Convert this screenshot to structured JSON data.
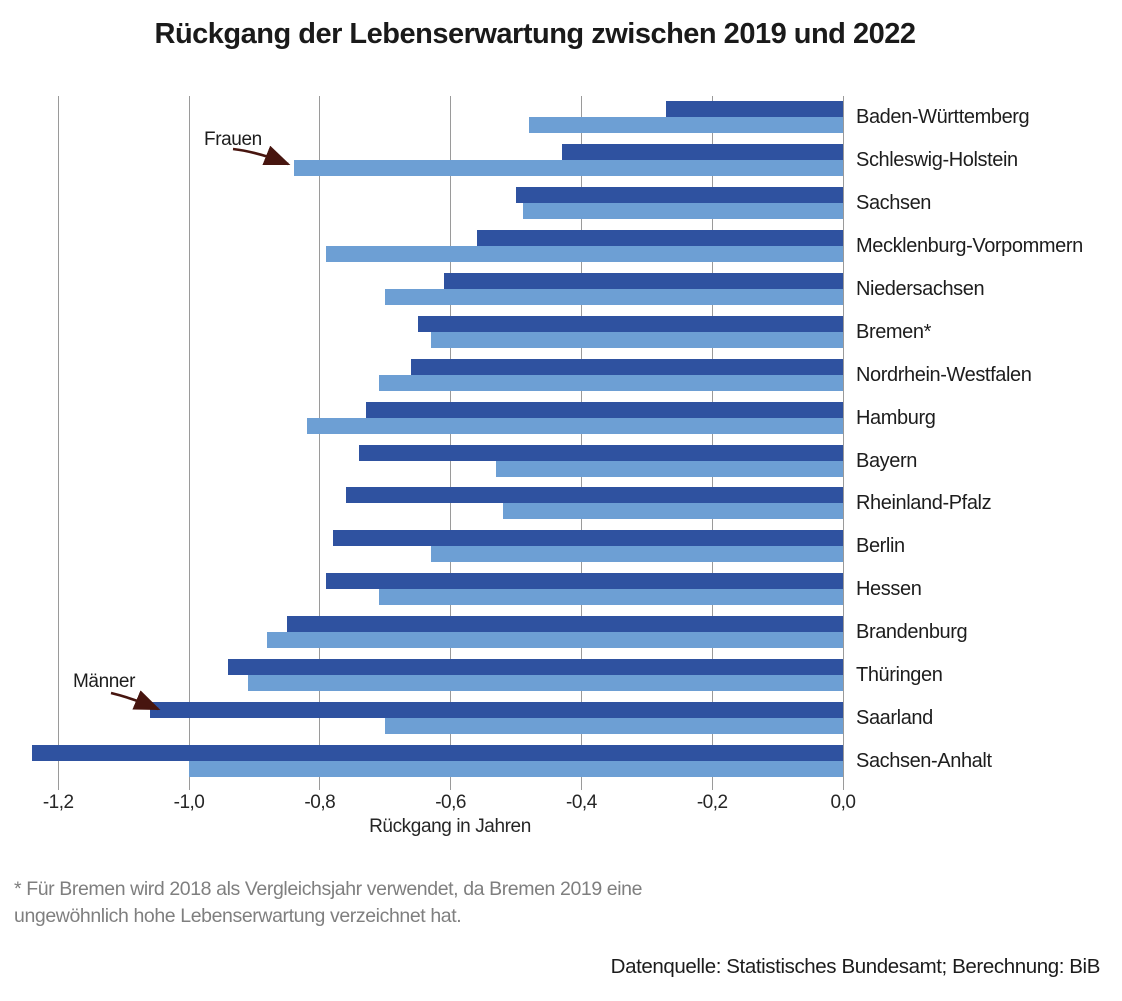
{
  "title": "Rückgang der Lebenserwartung zwischen 2019 und 2022",
  "chart_data": {
    "type": "bar",
    "orientation": "horizontal",
    "unit": "Jahre",
    "categories": [
      "Baden-Württemberg",
      "Schleswig-Holstein",
      "Sachsen",
      "Mecklenburg-Vorpommern",
      "Niedersachsen",
      "Bremen*",
      "Nordrhein-Westfalen",
      "Hamburg",
      "Bayern",
      "Rheinland-Pfalz",
      "Berlin",
      "Hessen",
      "Brandenburg",
      "Thüringen",
      "Saarland",
      "Sachsen-Anhalt"
    ],
    "series": [
      {
        "name": "Männer",
        "color": "#2f52a0",
        "values": [
          -0.27,
          -0.43,
          -0.5,
          -0.56,
          -0.61,
          -0.65,
          -0.66,
          -0.73,
          -0.74,
          -0.76,
          -0.78,
          -0.79,
          -0.85,
          -0.94,
          -1.06,
          -1.24
        ]
      },
      {
        "name": "Frauen",
        "color": "#6d9fd4",
        "values": [
          -0.48,
          -0.84,
          -0.49,
          -0.79,
          -0.7,
          -0.63,
          -0.71,
          -0.82,
          -0.53,
          -0.52,
          -0.63,
          -0.71,
          -0.88,
          -0.91,
          -0.7,
          -1.0
        ]
      }
    ],
    "xlabel": "Rückgang in Jahren",
    "xlim": [
      -1.29,
      0
    ],
    "grid": "vertical",
    "xticks": [
      {
        "value": -1.2,
        "label": "-1,2"
      },
      {
        "value": -1.0,
        "label": "-1,0"
      },
      {
        "value": -0.8,
        "label": "-0,8"
      },
      {
        "value": -0.6,
        "label": "-0,6"
      },
      {
        "value": -0.4,
        "label": "-0,4"
      },
      {
        "value": -0.2,
        "label": "-0,2"
      },
      {
        "value": 0.0,
        "label": "0,0"
      }
    ],
    "annotations": [
      {
        "text": "Frauen",
        "points_to": "Schleswig-Holstein, Frauen-Balken"
      },
      {
        "text": "Männer",
        "points_to": "Saarland, Männer-Balken"
      }
    ]
  },
  "footnote": "* Für Bremen wird 2018 als Vergleichsjahr verwendet, da Bremen 2019 eine ungewöhnlich hohe Lebenserwartung verzeichnet hat.",
  "source": "Datenquelle: Statistisches Bundesamt; Berechnung: BiB",
  "colors": {
    "bar_men": "#2f52a0",
    "bar_women": "#6d9fd4",
    "gridline": "#9a9a9a",
    "arrow": "#47150f",
    "footnote_text": "#7f7f7f",
    "text": "#1d1d1d"
  }
}
